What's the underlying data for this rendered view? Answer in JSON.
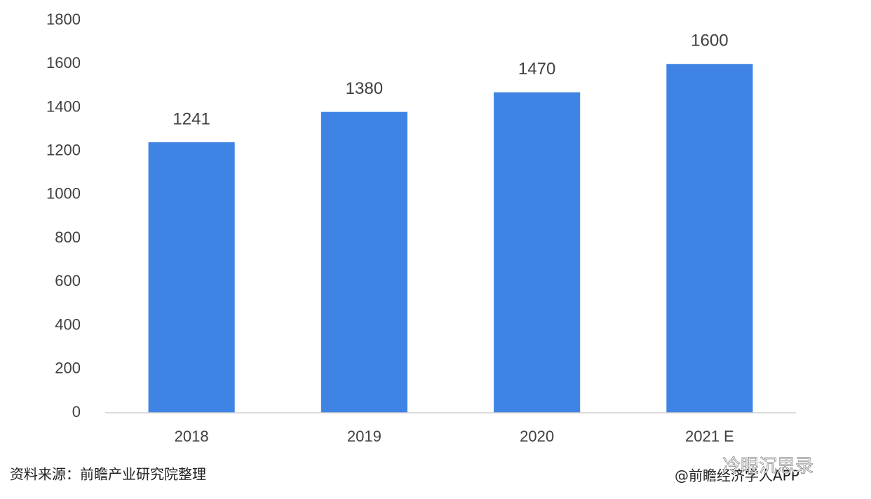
{
  "chart_data": {
    "type": "bar",
    "categories": [
      "2018",
      "2019",
      "2020",
      "2021 E"
    ],
    "values": [
      1241,
      1380,
      1470,
      1600
    ],
    "color": "#3f84e5",
    "ylim": [
      0,
      1800
    ],
    "yticks": [
      0,
      200,
      400,
      600,
      800,
      1000,
      1200,
      1400,
      1600,
      1800
    ],
    "grid": false,
    "source": "资料来源：前瞻产业研究院整理",
    "credit": "@前瞻经济学人APP",
    "watermark": "冷眼沉思录"
  }
}
